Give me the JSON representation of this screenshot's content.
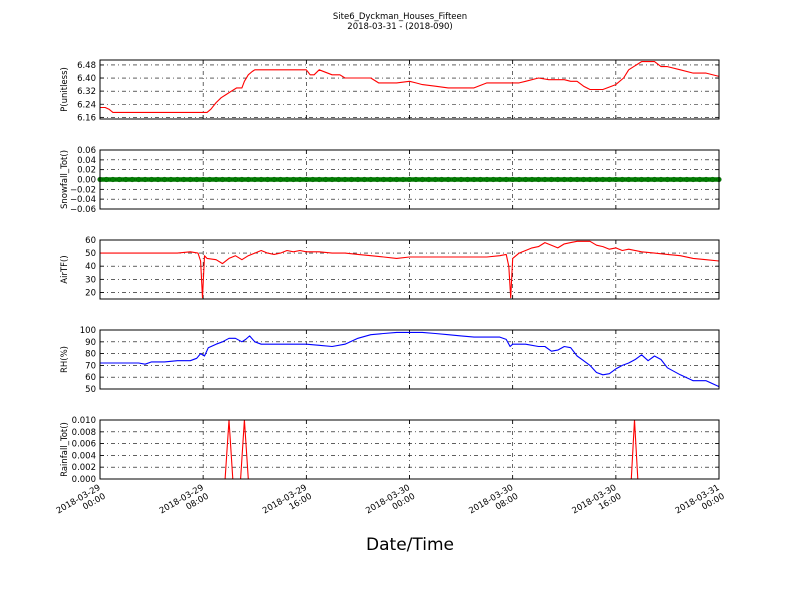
{
  "figure": {
    "title_line1": "Site6_Dyckman_Houses_Fifteen",
    "title_line2": "2018-03-31 - (2018-090)",
    "xlabel": "Date/Time",
    "colors": {
      "red": "#ff0000",
      "green": "#008000",
      "blue": "#0000ff",
      "grid": "#000000"
    }
  },
  "chart_data": [
    {
      "type": "line",
      "ylabel": "P(unitless)",
      "ylim": [
        6.15,
        6.51
      ],
      "yticks": [
        6.16,
        6.24,
        6.32,
        6.4,
        6.48
      ],
      "ytick_labels": [
        "6.16",
        "6.24",
        "6.32",
        "6.40",
        "6.48"
      ],
      "grid": true,
      "series": [
        {
          "color": "#ff0000",
          "x": [
            0,
            0.4,
            0.7,
            1,
            2,
            4,
            5,
            6,
            7,
            7.7,
            8,
            8.3,
            8.6,
            9,
            9.4,
            9.8,
            10.2,
            10.6,
            11,
            11.2,
            11.5,
            11.8,
            12,
            12.5,
            13,
            13.5,
            14,
            15,
            16,
            16.3,
            16.6,
            17,
            18,
            18.6,
            19,
            20,
            21,
            21.6,
            22,
            23,
            24,
            24.5,
            25,
            26,
            27,
            28,
            29,
            30,
            31,
            32,
            32.5,
            33,
            34,
            34.8,
            35.3,
            35.7,
            36,
            36.5,
            37,
            37.5,
            38,
            39,
            40,
            40.6,
            41,
            42,
            43,
            43.5,
            44,
            45,
            46,
            47,
            48
          ],
          "y": [
            6.22,
            6.22,
            6.21,
            6.19,
            6.19,
            6.19,
            6.19,
            6.19,
            6.19,
            6.19,
            6.19,
            6.19,
            6.21,
            6.25,
            6.28,
            6.3,
            6.32,
            6.34,
            6.34,
            6.38,
            6.42,
            6.44,
            6.45,
            6.45,
            6.45,
            6.45,
            6.45,
            6.45,
            6.45,
            6.42,
            6.42,
            6.45,
            6.42,
            6.42,
            6.4,
            6.4,
            6.4,
            6.37,
            6.37,
            6.37,
            6.38,
            6.37,
            6.36,
            6.35,
            6.34,
            6.34,
            6.34,
            6.37,
            6.37,
            6.37,
            6.37,
            6.38,
            6.4,
            6.39,
            6.39,
            6.39,
            6.39,
            6.38,
            6.38,
            6.35,
            6.33,
            6.33,
            6.36,
            6.4,
            6.45,
            6.5,
            6.5,
            6.47,
            6.47,
            6.45,
            6.43,
            6.43,
            6.41
          ]
        }
      ]
    },
    {
      "type": "line",
      "ylabel": "Snowfall_Tot()",
      "ylim": [
        -0.06,
        0.06
      ],
      "yticks": [
        -0.06,
        -0.04,
        -0.02,
        0.0,
        0.02,
        0.04,
        0.06
      ],
      "ytick_labels": [
        "−0.06",
        "−0.04",
        "−0.02",
        "0.00",
        "0.02",
        "0.04",
        "0.06"
      ],
      "grid": true,
      "series": [
        {
          "color": "#008000",
          "marker": "dot",
          "x": [
            0,
            48
          ],
          "y": [
            0,
            0
          ]
        }
      ]
    },
    {
      "type": "line",
      "ylabel": "AirTF()",
      "ylim": [
        15,
        60
      ],
      "yticks": [
        20,
        30,
        40,
        50,
        60
      ],
      "ytick_labels": [
        "20",
        "30",
        "40",
        "50",
        "60"
      ],
      "grid": true,
      "series": [
        {
          "color": "#ff0000",
          "x": [
            0,
            1,
            2,
            3,
            4,
            5,
            6,
            7,
            7.6,
            7.8,
            7.95,
            8.1,
            8.3,
            9,
            9.5,
            10,
            10.5,
            11,
            11.5,
            12,
            12.5,
            13,
            13.5,
            14,
            14.5,
            15,
            15.5,
            16,
            16.5,
            17,
            18,
            19,
            20,
            21,
            22,
            23,
            24,
            25,
            26,
            27,
            28,
            29,
            30,
            31,
            31.5,
            31.7,
            31.85,
            32,
            32.5,
            33,
            33.5,
            34,
            34.5,
            35,
            35.5,
            36,
            36.5,
            37,
            37.5,
            38,
            38.5,
            39,
            39.5,
            40,
            40.5,
            41,
            42,
            43,
            44,
            45,
            46,
            47,
            48
          ],
          "y": [
            50,
            50,
            50,
            50,
            50,
            50,
            50,
            51,
            50,
            44,
            16,
            48,
            46,
            45,
            42,
            46,
            48,
            45,
            48,
            50,
            52,
            50,
            49,
            50,
            52,
            51,
            52,
            51,
            51,
            51,
            50,
            50,
            49,
            48,
            47,
            46,
            47,
            47,
            47,
            47,
            47,
            47,
            47,
            48,
            49,
            40,
            16,
            46,
            50,
            52,
            54,
            55,
            58,
            56,
            54,
            57,
            58,
            59,
            59,
            59,
            56,
            55,
            53,
            54,
            52,
            53,
            51,
            50,
            49,
            48,
            46,
            45,
            44
          ]
        }
      ]
    },
    {
      "type": "line",
      "ylabel": "RH(%)",
      "ylim": [
        50,
        100
      ],
      "yticks": [
        50,
        60,
        70,
        80,
        90,
        100
      ],
      "ytick_labels": [
        "50",
        "60",
        "70",
        "80",
        "90",
        "100"
      ],
      "grid": true,
      "series": [
        {
          "color": "#0000ff",
          "x": [
            0,
            1,
            2,
            3,
            3.5,
            4,
            5,
            6,
            7,
            7.5,
            7.8,
            8.1,
            8.4,
            9,
            9.5,
            10,
            10.5,
            11,
            11.3,
            11.6,
            12,
            12.5,
            13,
            13.5,
            14,
            15,
            16,
            17,
            18,
            19,
            20,
            21,
            22,
            23,
            24,
            25,
            26,
            27,
            28,
            29,
            30,
            31,
            31.5,
            31.8,
            32,
            33,
            34,
            34.5,
            35,
            35.5,
            36,
            36.5,
            37,
            37.5,
            38,
            38.5,
            39,
            39.5,
            40,
            40.5,
            41,
            41.5,
            42,
            42.5,
            43,
            43.5,
            44,
            45,
            46,
            47,
            48
          ],
          "y": [
            72,
            72,
            72,
            72,
            71,
            73,
            73,
            74,
            74,
            76,
            80,
            78,
            85,
            88,
            90,
            93,
            93,
            90,
            92,
            95,
            90,
            88,
            88,
            88,
            88,
            88,
            88,
            87,
            86,
            88,
            93,
            96,
            97,
            98,
            98,
            98,
            97,
            96,
            95,
            94,
            94,
            94,
            92,
            86,
            88,
            88,
            86,
            86,
            82,
            83,
            86,
            85,
            78,
            74,
            70,
            64,
            62,
            63,
            67,
            70,
            72,
            75,
            79,
            74,
            78,
            75,
            68,
            62,
            57,
            57,
            52
          ]
        }
      ]
    },
    {
      "type": "line",
      "ylabel": "Rainfall_Tot()",
      "ylim": [
        0,
        0.01
      ],
      "yticks": [
        0.0,
        0.002,
        0.004,
        0.006,
        0.008,
        0.01
      ],
      "ytick_labels": [
        "0.000",
        "0.002",
        "0.004",
        "0.006",
        "0.008",
        "0.010"
      ],
      "grid": true,
      "series": [
        {
          "color": "#ff0000",
          "x": [
            0,
            9.7,
            10,
            10.3,
            10.9,
            11.2,
            11.5,
            41.2,
            41.45,
            41.7,
            48
          ],
          "y": [
            0,
            0,
            0.01,
            0,
            0,
            0.01,
            0,
            0,
            0.01,
            0,
            0
          ]
        }
      ]
    }
  ],
  "xaxis": {
    "range_hours": [
      0,
      48
    ],
    "ticks_hours": [
      0,
      8,
      16,
      24,
      32,
      40,
      48
    ],
    "tick_labels": [
      [
        "2018-03-29",
        "00:00"
      ],
      [
        "2018-03-29",
        "08:00"
      ],
      [
        "2018-03-29",
        "16:00"
      ],
      [
        "2018-03-30",
        "00:00"
      ],
      [
        "2018-03-30",
        "08:00"
      ],
      [
        "2018-03-30",
        "16:00"
      ],
      [
        "2018-03-31",
        "00:00"
      ]
    ]
  }
}
